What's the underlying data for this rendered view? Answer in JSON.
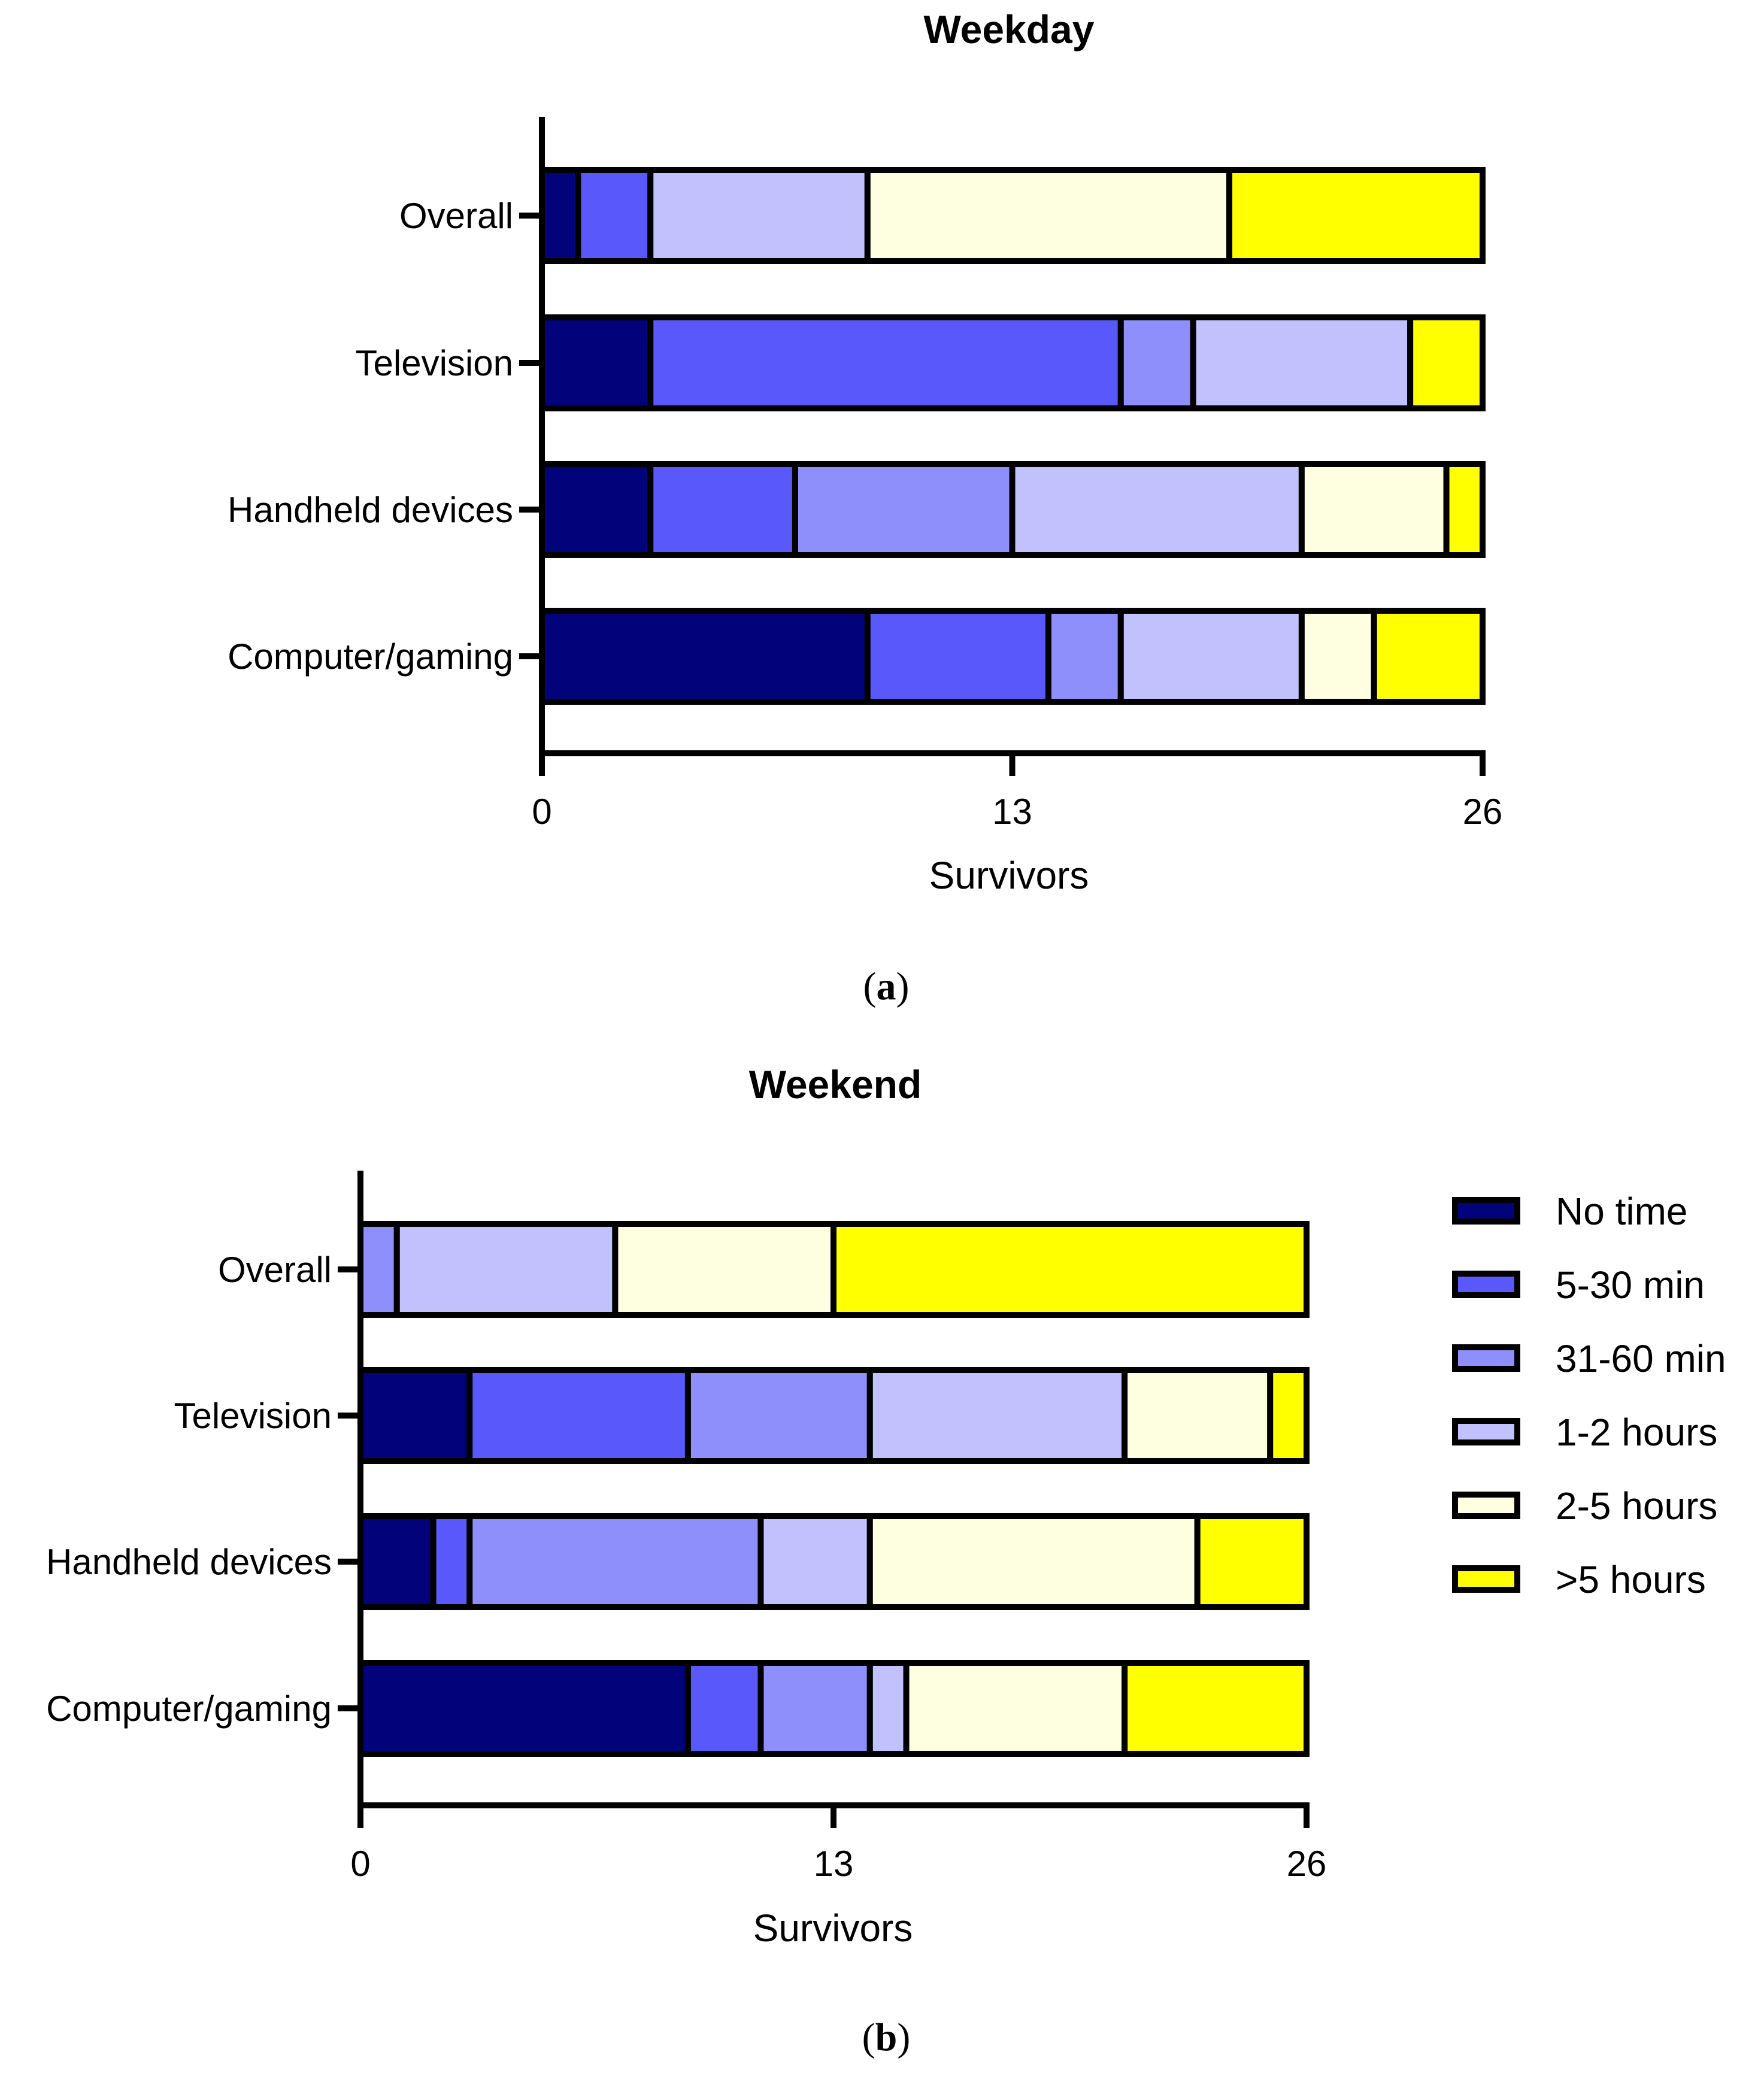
{
  "chart_data": [
    {
      "type": "bar",
      "orientation": "horizontal",
      "stacked": true,
      "panel_label": "a",
      "title": "Weekday",
      "xlabel": "Survivors",
      "ylabel": "",
      "xlim": [
        0,
        26
      ],
      "xticks": [
        "0",
        "13",
        "26"
      ],
      "categories": [
        "Overall",
        "Television",
        "Handheld devices",
        "Computer/gaming"
      ],
      "series": [
        {
          "name": "No time",
          "values": [
            1,
            3,
            3,
            9
          ]
        },
        {
          "name": "5-30 min",
          "values": [
            2,
            13,
            4,
            5
          ]
        },
        {
          "name": "31-60 min",
          "values": [
            0,
            2,
            6,
            2
          ]
        },
        {
          "name": "1-2 hours",
          "values": [
            6,
            6,
            8,
            5
          ]
        },
        {
          "name": "2-5 hours",
          "values": [
            10,
            0,
            4,
            2
          ]
        },
        {
          "name": ">5 hours",
          "values": [
            7,
            2,
            1,
            3
          ]
        }
      ],
      "legend": "none"
    },
    {
      "type": "bar",
      "orientation": "horizontal",
      "stacked": true,
      "panel_label": "b",
      "title": "Weekend",
      "xlabel": "Survivors",
      "ylabel": "",
      "xlim": [
        0,
        26
      ],
      "xticks": [
        "0",
        "13",
        "26"
      ],
      "categories": [
        "Overall",
        "Television",
        "Handheld devices",
        "Computer/gaming"
      ],
      "series": [
        {
          "name": "No time",
          "values": [
            0,
            3,
            2,
            9
          ]
        },
        {
          "name": "5-30 min",
          "values": [
            0,
            6,
            1,
            2
          ]
        },
        {
          "name": "31-60 min",
          "values": [
            1,
            5,
            8,
            3
          ]
        },
        {
          "name": "1-2 hours",
          "values": [
            6,
            7,
            3,
            1
          ]
        },
        {
          "name": "2-5 hours",
          "values": [
            6,
            4,
            9,
            6
          ]
        },
        {
          "name": ">5 hours",
          "values": [
            13,
            1,
            3,
            5
          ]
        }
      ],
      "legend": "right"
    }
  ],
  "colors": [
    "#02027a",
    "#5959fb",
    "#8f8ffc",
    "#c1c1fd",
    "#fefee0",
    "#ffff00"
  ]
}
